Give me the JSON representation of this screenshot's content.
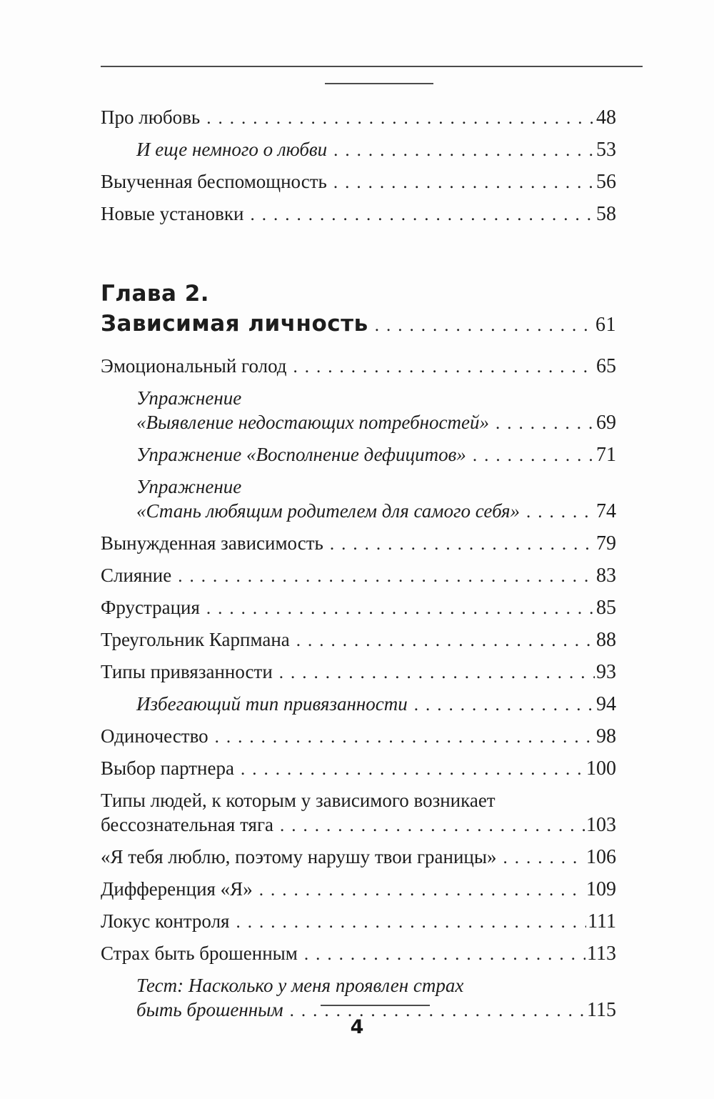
{
  "page": {
    "number": "4"
  },
  "toc": {
    "sections": [
      {
        "chapter": null,
        "items": [
          {
            "style": "normal",
            "lines": [
              {
                "text": "Про любовь",
                "page": "48"
              }
            ]
          },
          {
            "style": "italic",
            "lines": [
              {
                "text": "И еще немного о любви",
                "page": "53"
              }
            ]
          },
          {
            "style": "normal",
            "lines": [
              {
                "text": "Выученная беспомощность",
                "page": "56"
              }
            ]
          },
          {
            "style": "normal",
            "lines": [
              {
                "text": "Новые установки",
                "page": "58"
              }
            ]
          }
        ]
      },
      {
        "chapter": {
          "label": "Глава 2.",
          "title": "Зависимая личность",
          "page": "61"
        },
        "items": [
          {
            "style": "normal",
            "lines": [
              {
                "text": "Эмоциональный голод",
                "page": "65"
              }
            ]
          },
          {
            "style": "italic",
            "lines": [
              {
                "text": "Упражнение",
                "page": null
              },
              {
                "text": "«Выявление недостающих потребностей»",
                "page": "69"
              }
            ]
          },
          {
            "style": "italic",
            "lines": [
              {
                "text": "Упражнение «Восполнение дефицитов»",
                "page": "71"
              }
            ]
          },
          {
            "style": "italic",
            "lines": [
              {
                "text": "Упражнение",
                "page": null
              },
              {
                "text": "«Стань любящим родителем для самого себя»",
                "page": "74"
              }
            ]
          },
          {
            "style": "normal",
            "lines": [
              {
                "text": "Вынужденная зависимость",
                "page": "79"
              }
            ]
          },
          {
            "style": "normal",
            "lines": [
              {
                "text": "Слияние",
                "page": "83"
              }
            ]
          },
          {
            "style": "normal",
            "lines": [
              {
                "text": "Фрустрация",
                "page": "85"
              }
            ]
          },
          {
            "style": "normal",
            "lines": [
              {
                "text": "Треугольник Карпмана",
                "page": "88"
              }
            ]
          },
          {
            "style": "normal",
            "lines": [
              {
                "text": "Типы привязанности",
                "page": "93"
              }
            ]
          },
          {
            "style": "italic",
            "lines": [
              {
                "text": "Избегающий тип привязанности",
                "page": "94"
              }
            ]
          },
          {
            "style": "normal",
            "lines": [
              {
                "text": "Одиночество",
                "page": "98"
              }
            ]
          },
          {
            "style": "normal",
            "lines": [
              {
                "text": "Выбор партнера",
                "page": "100"
              }
            ]
          },
          {
            "style": "normal",
            "lines": [
              {
                "text": "Типы людей, к которым у зависимого возникает",
                "page": null
              },
              {
                "text": "бессознательная тяга",
                "page": "103"
              }
            ]
          },
          {
            "style": "normal",
            "lines": [
              {
                "text": "«Я тебя люблю, поэтому нарушу твои границы»",
                "page": "106"
              }
            ]
          },
          {
            "style": "normal",
            "lines": [
              {
                "text": "Дифференция «Я»",
                "page": "109"
              }
            ]
          },
          {
            "style": "normal",
            "lines": [
              {
                "text": "Локус контроля",
                "page": "111"
              }
            ]
          },
          {
            "style": "normal",
            "lines": [
              {
                "text": "Страх быть брошенным",
                "page": "113"
              }
            ]
          },
          {
            "style": "italic",
            "lines": [
              {
                "text": "Тест: Насколько у меня проявлен страх",
                "page": null
              },
              {
                "text": "быть брошенным",
                "page": "115"
              }
            ]
          }
        ]
      }
    ]
  }
}
